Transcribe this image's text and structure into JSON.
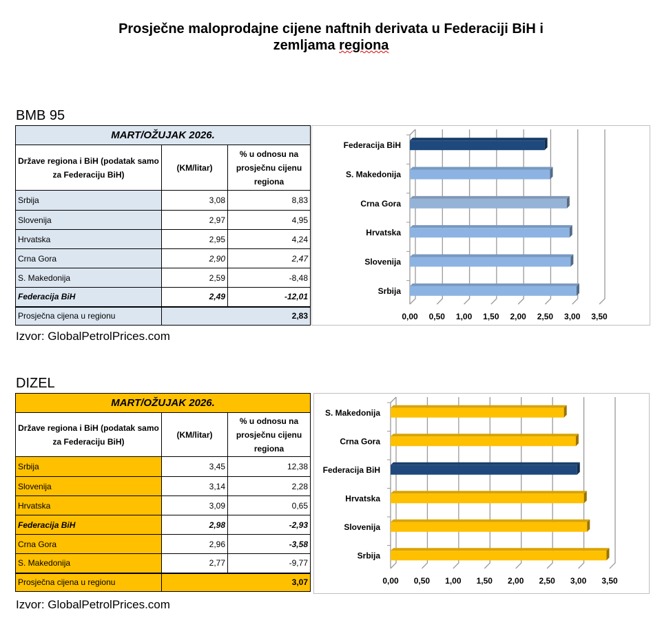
{
  "title_line1": "Prosječne maloprodajne cijene naftnih derivata u Federaciji BiH i",
  "title_line2a": "zemljama ",
  "title_line2b": "regiona",
  "sections": [
    {
      "label": "BMB 95",
      "period": "MART/OŽUJAK 2026.",
      "headers": [
        "Države regiona i BiH (podatak samo za Federaciju BiH)",
        "(KM/litar)",
        "% u odnosu na prosječnu cijenu regiona"
      ],
      "rows": [
        {
          "country": "Srbija",
          "price": "3,08",
          "pct": "8,83"
        },
        {
          "country": "Slovenija",
          "price": "2,97",
          "pct": "4,95"
        },
        {
          "country": "Hrvatska",
          "price": "2,95",
          "pct": "4,24"
        },
        {
          "country": "Crna Gora",
          "price": "2,90",
          "pct": "2,47"
        },
        {
          "country": "S. Makedonija",
          "price": "2,59",
          "pct": "-8,48"
        },
        {
          "country": "Federacija BiH",
          "price": "2,49",
          "pct": "-12,01"
        }
      ],
      "avg_label": "Prosječna cijena u regionu",
      "avg_value": "2,83",
      "source": "Izvor: GlobalPetrolPrices.com"
    },
    {
      "label": "DIZEL",
      "period": "MART/OŽUJAK 2026.",
      "headers": [
        "Države regiona i BiH (podatak samo za Federaciju BiH)",
        "(KM/litar)",
        "% u odnosu na prosječnu cijenu regiona"
      ],
      "rows": [
        {
          "country": "Srbija",
          "price": "3,45",
          "pct": "12,38"
        },
        {
          "country": "Slovenija",
          "price": "3,14",
          "pct": "2,28"
        },
        {
          "country": "Hrvatska",
          "price": "3,09",
          "pct": "0,65"
        },
        {
          "country": "Federacija BiH",
          "price": "2,98",
          "pct": "-2,93"
        },
        {
          "country": "Crna Gora",
          "price": "2,96",
          "pct": "-3,58"
        },
        {
          "country": "S. Makedonija",
          "price": "2,77",
          "pct": "-9,77"
        }
      ],
      "avg_label": "Prosječna cijena u regionu",
      "avg_value": "3,07",
      "source": "Izvor: GlobalPetrolPrices.com"
    }
  ],
  "chart_data": [
    {
      "type": "bar",
      "orientation": "horizontal",
      "title": "",
      "categories": [
        "Federacija BiH",
        "S. Makedonija",
        "Crna Gora",
        "Hrvatska",
        "Slovenija",
        "Srbija"
      ],
      "values": [
        2.49,
        2.59,
        2.9,
        2.95,
        2.97,
        3.08
      ],
      "xlim": [
        0,
        3.5
      ],
      "ticks": [
        "0,00",
        "0,50",
        "1,00",
        "1,50",
        "2,00",
        "2,50",
        "3,00",
        "3,50"
      ],
      "colors": [
        "#1f497d",
        "#8db3e2",
        "#95b3d7",
        "#8db3e2",
        "#8db3e2",
        "#8db3e2"
      ],
      "grid": true
    },
    {
      "type": "bar",
      "orientation": "horizontal",
      "title": "",
      "categories": [
        "S. Makedonija",
        "Crna Gora",
        "Federacija BiH",
        "Hrvatska",
        "Slovenija",
        "Srbija"
      ],
      "values": [
        2.77,
        2.96,
        2.98,
        3.09,
        3.14,
        3.45
      ],
      "xlim": [
        0,
        3.5
      ],
      "ticks": [
        "0,00",
        "0,50",
        "1,00",
        "1,50",
        "2,00",
        "2,50",
        "3,00",
        "3,50"
      ],
      "colors": [
        "#ffc000",
        "#ffc000",
        "#1f497d",
        "#ffc000",
        "#ffc000",
        "#ffc000"
      ],
      "grid": true
    }
  ]
}
